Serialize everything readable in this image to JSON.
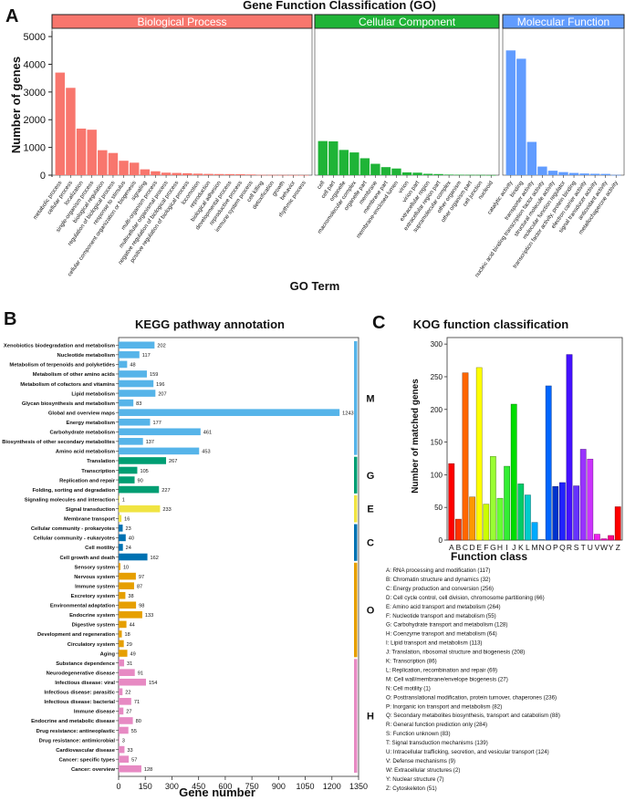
{
  "panels": {
    "a": "A",
    "b": "B",
    "c": "C"
  },
  "chart_data": [
    {
      "type": "bar",
      "title": "Gene Function Classification (GO)",
      "xlabel": "GO Term",
      "ylabel": "Number of genes",
      "ylim": [
        0,
        5200
      ],
      "yticks": [
        "0",
        "1000",
        "2000",
        "3000",
        "4000",
        "5000"
      ],
      "groups": [
        {
          "name": "Biological Process",
          "color": "#f8766d",
          "categories": [
            "metabolic process",
            "cellular process",
            "localization",
            "single-organism process",
            "biological regulation",
            "regulation of biological process",
            "response to stimulus",
            "cellular component organization or biogenesis",
            "signaling",
            "multi-organism process",
            "multicellular organismal process",
            "negative regulation of biological process",
            "positive regulation of biological process",
            "locomotion",
            "reproduction",
            "biological adhesion",
            "developmental process",
            "reproductive process",
            "immune system process",
            "cell killing",
            "detoxification",
            "growth",
            "behavior",
            "rhythmic process"
          ],
          "values": [
            3700,
            3150,
            1680,
            1640,
            900,
            800,
            520,
            450,
            210,
            140,
            90,
            80,
            70,
            55,
            45,
            40,
            38,
            35,
            25,
            12,
            10,
            8,
            6,
            4
          ]
        },
        {
          "name": "Cellular Component",
          "color": "#1fb437",
          "categories": [
            "cell",
            "cell part",
            "organelle",
            "macromolecular complex",
            "organelle part",
            "membrane",
            "membrane part",
            "membrane-enclosed lumen",
            "virion",
            "virion part",
            "extracellular region",
            "extracellular region part",
            "supramolecular complex",
            "other organism",
            "other organism part",
            "cell junction",
            "nucleoid"
          ],
          "values": [
            1230,
            1220,
            910,
            820,
            610,
            410,
            290,
            240,
            100,
            90,
            50,
            40,
            20,
            15,
            12,
            10,
            5
          ]
        },
        {
          "name": "Molecular Function",
          "color": "#619cff",
          "categories": [
            "catalytic activity",
            "binding",
            "transporter activity",
            "nucleic acid binding transcription factor activity",
            "structural molecule activity",
            "molecular function regulator",
            "transcription factor activity, protein binding",
            "electron carrier activity",
            "signal transducer activity",
            "antioxidant activity",
            "metallochaperone activity"
          ],
          "values": [
            4500,
            4200,
            1200,
            310,
            160,
            110,
            80,
            60,
            50,
            45,
            8
          ]
        }
      ]
    },
    {
      "type": "bar",
      "orientation": "horizontal",
      "title": "KEGG pathway annotation",
      "xlabel": "Gene number",
      "xlim": [
        0,
        1350
      ],
      "xticks": [
        "0",
        "150",
        "300",
        "450",
        "600",
        "750",
        "900",
        "1050",
        "1200",
        "1350"
      ],
      "groups": [
        {
          "name": "M",
          "color": "#56b4e9",
          "categories": [
            "Xenobiotics biodegradation and metabolism",
            "Nucleotide metabolism",
            "Metabolism of terpenoids and polyketides",
            "Metabolism of other amino acids",
            "Metabolism of cofactors and vitamins",
            "Lipid metabolism",
            "Glycan biosynthesis and metabolism",
            "Global and overview maps",
            "Energy metabolism",
            "Carbohydrate metabolism",
            "Biosynthesis of other secondary metabolites",
            "Amino acid metabolism"
          ],
          "values": [
            202,
            117,
            48,
            159,
            196,
            207,
            83,
            1243,
            177,
            461,
            137,
            453
          ]
        },
        {
          "name": "G",
          "color": "#009e73",
          "categories": [
            "Translation",
            "Transcription",
            "Replication and repair",
            "Folding, sorting and degradation"
          ],
          "values": [
            267,
            105,
            90,
            227
          ]
        },
        {
          "name": "E",
          "color": "#f0e442",
          "categories": [
            "Signaling molecules and interaction",
            "Signal transduction",
            "Membrane transport"
          ],
          "values": [
            1,
            233,
            16
          ]
        },
        {
          "name": "C",
          "color": "#0072b2",
          "categories": [
            "Cellular community - prokaryotes",
            "Cellular community - eukaryotes",
            "Cell motility",
            "Cell growth and death"
          ],
          "values": [
            23,
            40,
            24,
            162
          ]
        },
        {
          "name": "O",
          "color": "#e69f00",
          "categories": [
            "Sensory system",
            "Nervous system",
            "Immune system",
            "Excretory system",
            "Environmental adaptation",
            "Endocrine system",
            "Digestive system",
            "Development and regeneration",
            "Circulatory system",
            "Aging"
          ],
          "values": [
            10,
            97,
            87,
            38,
            98,
            133,
            44,
            18,
            29,
            49
          ]
        },
        {
          "name": "H",
          "color": "#e78ac3",
          "categories": [
            "Substance dependence",
            "Neurodegenerative disease",
            "Infectious disease: viral",
            "Infectious disease: parasitic",
            "Infectious disease: bacterial",
            "Immune disease",
            "Endocrine and metabolic disease",
            "Drug resistance: antineoplastic",
            "Drug resistance: antimicrobial",
            "Cardiovascular disease",
            "Cancer: specific types",
            "Cancer: overview"
          ],
          "values": [
            31,
            91,
            154,
            22,
            71,
            27,
            80,
            55,
            3,
            33,
            57,
            128
          ]
        }
      ]
    },
    {
      "type": "bar",
      "title": "KOG function classification",
      "xlabel": "Function class",
      "ylabel": "Number of matched genes",
      "ylim": [
        0,
        310
      ],
      "yticks": [
        "0",
        "50",
        "100",
        "150",
        "200",
        "250",
        "300"
      ],
      "categories": [
        "A",
        "B",
        "C",
        "D",
        "E",
        "F",
        "G",
        "H",
        "I",
        "J",
        "K",
        "L",
        "M",
        "N",
        "O",
        "P",
        "Q",
        "R",
        "S",
        "T",
        "U",
        "V",
        "W",
        "Y",
        "Z"
      ],
      "values": [
        117,
        32,
        256,
        66,
        264,
        55,
        128,
        64,
        113,
        208,
        86,
        69,
        27,
        1,
        236,
        82,
        88,
        284,
        83,
        139,
        124,
        9,
        2,
        7,
        51
      ],
      "colors": [
        "#ff0000",
        "#ff3300",
        "#ff6600",
        "#ff9900",
        "#ffff00",
        "#ccff00",
        "#99ff33",
        "#66ff33",
        "#33ee33",
        "#00dd00",
        "#00cc66",
        "#00cccc",
        "#00aaff",
        "#66aaff",
        "#0066ff",
        "#0033cc",
        "#2222ff",
        "#4411ff",
        "#6633ff",
        "#9933ff",
        "#cc33ff",
        "#ee22ee",
        "#ff00cc",
        "#ff0088",
        "#ff0000"
      ],
      "legend": [
        "A: RNA processing and modification   (117)",
        "B: Chromatin structure and dynamics   (32)",
        "C: Energy production and conversion   (256)",
        "D: Cell cycle control, cell division, chromosome partitioning   (66)",
        "E: Amino acid transport and metabolism   (264)",
        "F: Nucleotide transport and metabolism   (55)",
        "G: Carbohydrate transport and metabolism   (128)",
        "H: Coenzyme transport and metabolism   (64)",
        "I: Lipid transport and metabolism   (113)",
        "J: Translation, ribosomal structure and biogenesis   (208)",
        "K: Transcription   (86)",
        "L: Replication, recombination and repair   (69)",
        "M: Cell wall/membrane/envelope biogenesis   (27)",
        "N: Cell motility   (1)",
        "O: Posttranslational modification, protein turnover, chaperones   (236)",
        "P: Inorganic ion transport and metabolism   (82)",
        "Q: Secondary metabolites biosynthesis, transport and catabolism   (88)",
        "R: General function prediction only   (284)",
        "S: Function unknown   (83)",
        "T: Signal transduction mechanisms   (139)",
        "U: Intracellular trafficking, secretion, and vesicular transport   (124)",
        "V: Defense mechanisms   (9)",
        "W: Extracellular structures   (2)",
        "Y: Nuclear structure   (7)",
        "Z: Cytoskeleton   (51)"
      ]
    }
  ]
}
